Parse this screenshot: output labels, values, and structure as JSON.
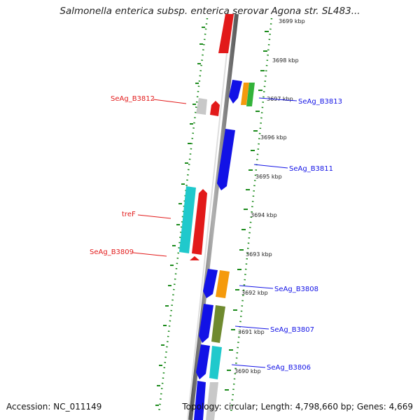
{
  "title": "Salmonella enterica subsp. enterica serovar Agona str. SL483...",
  "footer": {
    "accession": "Accession: NC_011149",
    "topology": "Topology: circular; Length: 4,798,660 bp; Genes: 4,669"
  },
  "colors": {
    "red": "#e21a1a",
    "blue": "#1212e6",
    "cyan": "#20c9cc",
    "orange": "#f59a0c",
    "green": "#33b33a",
    "olive": "#6f8a2f",
    "gray": "#c8c8c8",
    "tick_green": "#1a8a1a",
    "backbone": "#888888"
  },
  "scale": [
    "3699 kbp",
    "3698 kbp",
    "3697 kbp",
    "3696 kbp",
    "3695 kbp",
    "3694 kbp",
    "3693 kbp",
    "3692 kbp",
    "3691 kbp",
    "3690 kbp"
  ],
  "labels": {
    "left": [
      "SeAg_B3812",
      "treF",
      "SeAg_B3809"
    ],
    "right": [
      "SeAg_B3813",
      "SeAg_B3811",
      "SeAg_B3808",
      "SeAg_B3807",
      "SeAg_B3806"
    ]
  }
}
